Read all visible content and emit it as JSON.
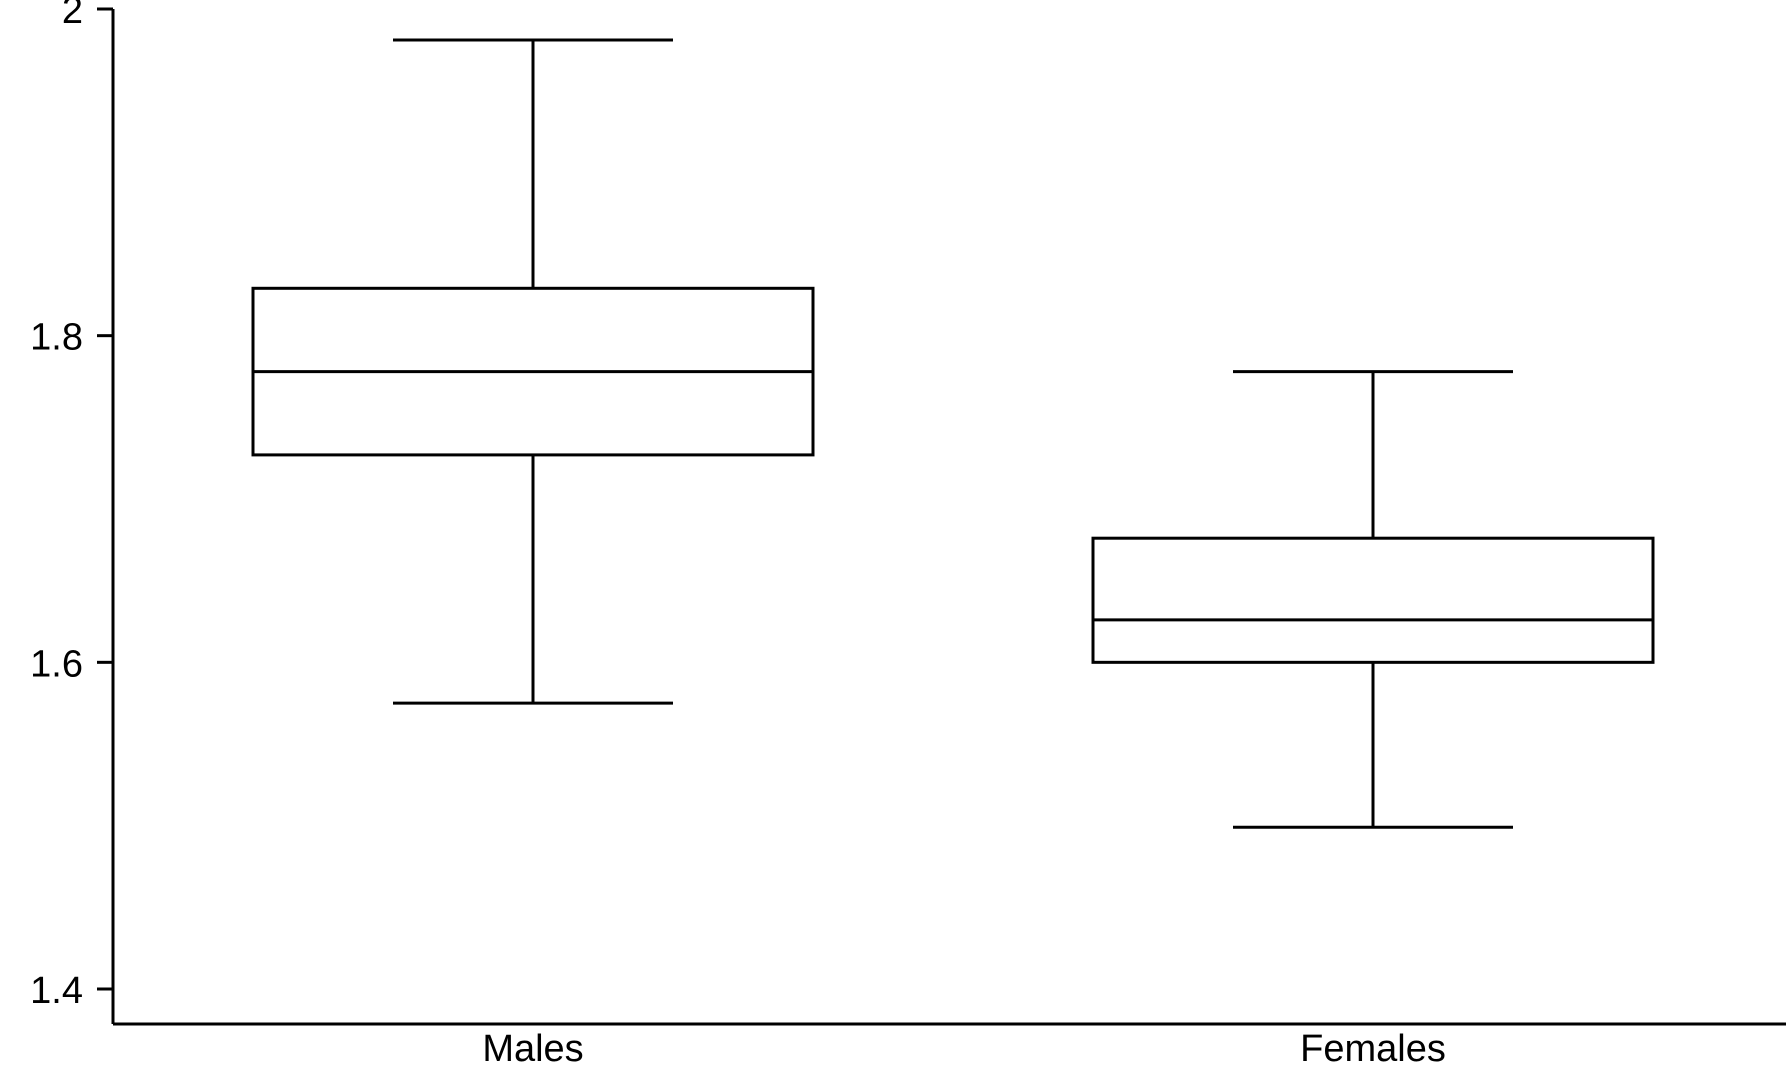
{
  "chart_data": {
    "type": "boxplot",
    "title": "",
    "xlabel": "",
    "ylabel": "",
    "categories": [
      "Males",
      "Females"
    ],
    "ylim": [
      1.4,
      2.0
    ],
    "yticks": [
      {
        "value": 1.4,
        "label": "1.4"
      },
      {
        "value": 1.6,
        "label": "1.6"
      },
      {
        "value": 1.8,
        "label": "1.8"
      },
      {
        "value": 2.0,
        "label": "2"
      }
    ],
    "grid": false,
    "boxes": [
      {
        "category": "Males",
        "min": 1.575,
        "q1": 1.727,
        "median": 1.778,
        "q3": 1.829,
        "max": 1.981
      },
      {
        "category": "Females",
        "min": 1.499,
        "q1": 1.6,
        "median": 1.626,
        "q3": 1.676,
        "max": 1.778
      }
    ],
    "colors": {
      "stroke": "#000000",
      "fill": "#ffffff"
    }
  }
}
